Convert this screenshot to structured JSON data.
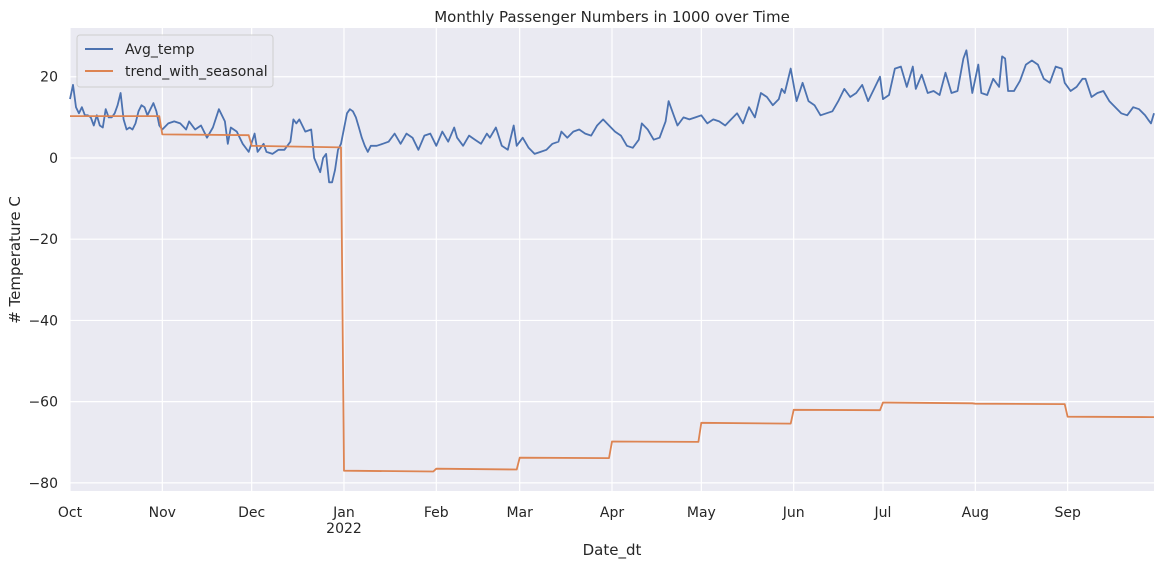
{
  "chart_data": {
    "type": "line",
    "title": "Monthly Passenger Numbers in 1000 over Time",
    "xlabel": "Date_dt",
    "ylabel": "# Temperature C",
    "xlim": [
      "2021-10-01",
      "2022-09-30"
    ],
    "ylim": [
      -82,
      32
    ],
    "grid": true,
    "legend_position": "top-left",
    "y_ticks": [
      -80,
      -60,
      -40,
      -20,
      0,
      20
    ],
    "x_ticks": [
      {
        "date": "2021-10-01",
        "label": "Oct",
        "sublabel": ""
      },
      {
        "date": "2021-11-01",
        "label": "Nov",
        "sublabel": ""
      },
      {
        "date": "2021-12-01",
        "label": "Dec",
        "sublabel": ""
      },
      {
        "date": "2022-01-01",
        "label": "Jan",
        "sublabel": "2022"
      },
      {
        "date": "2022-02-01",
        "label": "Feb",
        "sublabel": ""
      },
      {
        "date": "2022-03-01",
        "label": "Mar",
        "sublabel": ""
      },
      {
        "date": "2022-04-01",
        "label": "Apr",
        "sublabel": ""
      },
      {
        "date": "2022-05-01",
        "label": "May",
        "sublabel": ""
      },
      {
        "date": "2022-06-01",
        "label": "Jun",
        "sublabel": ""
      },
      {
        "date": "2022-07-01",
        "label": "Jul",
        "sublabel": ""
      },
      {
        "date": "2022-08-01",
        "label": "Aug",
        "sublabel": ""
      },
      {
        "date": "2022-09-01",
        "label": "Sep",
        "sublabel": ""
      }
    ],
    "series": [
      {
        "name": "Avg_temp",
        "color": "#4c72b0",
        "points": [
          [
            "2021-10-01",
            14.5
          ],
          [
            "2021-10-02",
            18.0
          ],
          [
            "2021-10-03",
            12.5
          ],
          [
            "2021-10-04",
            11.0
          ],
          [
            "2021-10-05",
            12.5
          ],
          [
            "2021-10-06",
            10.5
          ],
          [
            "2021-10-07",
            10.5
          ],
          [
            "2021-10-08",
            10.0
          ],
          [
            "2021-10-09",
            8.0
          ],
          [
            "2021-10-10",
            10.5
          ],
          [
            "2021-10-11",
            8.0
          ],
          [
            "2021-10-12",
            7.5
          ],
          [
            "2021-10-13",
            12.0
          ],
          [
            "2021-10-14",
            10.0
          ],
          [
            "2021-10-15",
            10.0
          ],
          [
            "2021-10-16",
            11.0
          ],
          [
            "2021-10-17",
            13.0
          ],
          [
            "2021-10-18",
            16.0
          ],
          [
            "2021-10-19",
            9.5
          ],
          [
            "2021-10-20",
            7.0
          ],
          [
            "2021-10-21",
            7.5
          ],
          [
            "2021-10-22",
            7.0
          ],
          [
            "2021-10-23",
            8.5
          ],
          [
            "2021-10-24",
            11.5
          ],
          [
            "2021-10-25",
            13.0
          ],
          [
            "2021-10-26",
            12.5
          ],
          [
            "2021-10-27",
            10.5
          ],
          [
            "2021-10-28",
            12.0
          ],
          [
            "2021-10-29",
            13.5
          ],
          [
            "2021-10-30",
            11.5
          ],
          [
            "2021-10-31",
            8.0
          ],
          [
            "2021-11-01",
            7.0
          ],
          [
            "2021-11-03",
            8.5
          ],
          [
            "2021-11-05",
            9.0
          ],
          [
            "2021-11-07",
            8.5
          ],
          [
            "2021-11-09",
            7.0
          ],
          [
            "2021-11-10",
            9.0
          ],
          [
            "2021-11-12",
            7.0
          ],
          [
            "2021-11-14",
            8.0
          ],
          [
            "2021-11-16",
            5.0
          ],
          [
            "2021-11-18",
            7.5
          ],
          [
            "2021-11-20",
            12.0
          ],
          [
            "2021-11-22",
            9.0
          ],
          [
            "2021-11-23",
            3.5
          ],
          [
            "2021-11-24",
            7.5
          ],
          [
            "2021-11-26",
            6.5
          ],
          [
            "2021-11-28",
            3.5
          ],
          [
            "2021-11-30",
            1.5
          ],
          [
            "2021-12-02",
            6.0
          ],
          [
            "2021-12-03",
            1.5
          ],
          [
            "2021-12-05",
            3.5
          ],
          [
            "2021-12-06",
            1.5
          ],
          [
            "2021-12-08",
            1.0
          ],
          [
            "2021-12-10",
            2.0
          ],
          [
            "2021-12-12",
            2.0
          ],
          [
            "2021-12-14",
            4.0
          ],
          [
            "2021-12-15",
            9.5
          ],
          [
            "2021-12-16",
            8.5
          ],
          [
            "2021-12-17",
            9.5
          ],
          [
            "2021-12-19",
            6.5
          ],
          [
            "2021-12-21",
            7.0
          ],
          [
            "2021-12-22",
            0.0
          ],
          [
            "2021-12-24",
            -3.5
          ],
          [
            "2021-12-25",
            0.0
          ],
          [
            "2021-12-26",
            1.0
          ],
          [
            "2021-12-27",
            -6.0
          ],
          [
            "2021-12-28",
            -6.0
          ],
          [
            "2021-12-29",
            -3.0
          ],
          [
            "2021-12-30",
            2.0
          ],
          [
            "2021-12-31",
            3.5
          ],
          [
            "2022-01-02",
            11.0
          ],
          [
            "2022-01-03",
            12.0
          ],
          [
            "2022-01-04",
            11.5
          ],
          [
            "2022-01-05",
            10.0
          ],
          [
            "2022-01-06",
            7.5
          ],
          [
            "2022-01-07",
            5.0
          ],
          [
            "2022-01-08",
            3.0
          ],
          [
            "2022-01-09",
            1.5
          ],
          [
            "2022-01-10",
            3.0
          ],
          [
            "2022-01-12",
            3.0
          ],
          [
            "2022-01-14",
            3.5
          ],
          [
            "2022-01-16",
            4.0
          ],
          [
            "2022-01-18",
            6.0
          ],
          [
            "2022-01-20",
            3.5
          ],
          [
            "2022-01-22",
            6.0
          ],
          [
            "2022-01-24",
            5.0
          ],
          [
            "2022-01-26",
            2.0
          ],
          [
            "2022-01-28",
            5.5
          ],
          [
            "2022-01-30",
            6.0
          ],
          [
            "2022-02-01",
            3.0
          ],
          [
            "2022-02-03",
            6.5
          ],
          [
            "2022-02-05",
            4.0
          ],
          [
            "2022-02-07",
            7.5
          ],
          [
            "2022-02-08",
            5.0
          ],
          [
            "2022-02-10",
            3.0
          ],
          [
            "2022-02-12",
            5.5
          ],
          [
            "2022-02-14",
            4.5
          ],
          [
            "2022-02-16",
            3.5
          ],
          [
            "2022-02-18",
            6.0
          ],
          [
            "2022-02-19",
            5.0
          ],
          [
            "2022-02-21",
            7.5
          ],
          [
            "2022-02-23",
            3.0
          ],
          [
            "2022-02-25",
            2.0
          ],
          [
            "2022-02-27",
            8.0
          ],
          [
            "2022-02-28",
            3.0
          ],
          [
            "2022-03-02",
            5.0
          ],
          [
            "2022-03-04",
            2.5
          ],
          [
            "2022-03-06",
            1.0
          ],
          [
            "2022-03-08",
            1.5
          ],
          [
            "2022-03-10",
            2.0
          ],
          [
            "2022-03-12",
            3.5
          ],
          [
            "2022-03-14",
            4.0
          ],
          [
            "2022-03-15",
            6.5
          ],
          [
            "2022-03-17",
            5.0
          ],
          [
            "2022-03-19",
            6.5
          ],
          [
            "2022-03-21",
            7.0
          ],
          [
            "2022-03-23",
            6.0
          ],
          [
            "2022-03-25",
            5.5
          ],
          [
            "2022-03-27",
            8.0
          ],
          [
            "2022-03-29",
            9.5
          ],
          [
            "2022-03-31",
            8.0
          ],
          [
            "2022-04-02",
            6.5
          ],
          [
            "2022-04-04",
            5.5
          ],
          [
            "2022-04-06",
            3.0
          ],
          [
            "2022-04-08",
            2.5
          ],
          [
            "2022-04-10",
            4.5
          ],
          [
            "2022-04-11",
            8.5
          ],
          [
            "2022-04-13",
            7.0
          ],
          [
            "2022-04-15",
            4.5
          ],
          [
            "2022-04-17",
            5.0
          ],
          [
            "2022-04-19",
            9.0
          ],
          [
            "2022-04-20",
            14.0
          ],
          [
            "2022-04-22",
            10.0
          ],
          [
            "2022-04-23",
            8.0
          ],
          [
            "2022-04-25",
            10.0
          ],
          [
            "2022-04-27",
            9.5
          ],
          [
            "2022-04-29",
            10.0
          ],
          [
            "2022-05-01",
            10.5
          ],
          [
            "2022-05-03",
            8.5
          ],
          [
            "2022-05-05",
            9.5
          ],
          [
            "2022-05-07",
            9.0
          ],
          [
            "2022-05-09",
            8.0
          ],
          [
            "2022-05-11",
            9.5
          ],
          [
            "2022-05-13",
            11.0
          ],
          [
            "2022-05-15",
            8.5
          ],
          [
            "2022-05-17",
            12.5
          ],
          [
            "2022-05-19",
            10.0
          ],
          [
            "2022-05-21",
            16.0
          ],
          [
            "2022-05-23",
            15.0
          ],
          [
            "2022-05-25",
            13.0
          ],
          [
            "2022-05-27",
            14.5
          ],
          [
            "2022-05-28",
            17.0
          ],
          [
            "2022-05-29",
            16.0
          ],
          [
            "2022-05-31",
            22.0
          ],
          [
            "2022-06-02",
            14.0
          ],
          [
            "2022-06-04",
            18.5
          ],
          [
            "2022-06-06",
            14.0
          ],
          [
            "2022-06-08",
            13.0
          ],
          [
            "2022-06-10",
            10.5
          ],
          [
            "2022-06-12",
            11.0
          ],
          [
            "2022-06-14",
            11.5
          ],
          [
            "2022-06-16",
            14.0
          ],
          [
            "2022-06-18",
            17.0
          ],
          [
            "2022-06-20",
            15.0
          ],
          [
            "2022-06-22",
            16.0
          ],
          [
            "2022-06-24",
            18.0
          ],
          [
            "2022-06-26",
            14.0
          ],
          [
            "2022-06-28",
            17.0
          ],
          [
            "2022-06-30",
            20.0
          ],
          [
            "2022-07-01",
            14.5
          ],
          [
            "2022-07-03",
            15.5
          ],
          [
            "2022-07-05",
            22.0
          ],
          [
            "2022-07-07",
            22.5
          ],
          [
            "2022-07-09",
            17.5
          ],
          [
            "2022-07-11",
            22.5
          ],
          [
            "2022-07-12",
            17.0
          ],
          [
            "2022-07-14",
            20.5
          ],
          [
            "2022-07-16",
            16.0
          ],
          [
            "2022-07-18",
            16.5
          ],
          [
            "2022-07-20",
            15.5
          ],
          [
            "2022-07-22",
            21.0
          ],
          [
            "2022-07-24",
            16.0
          ],
          [
            "2022-07-26",
            16.5
          ],
          [
            "2022-07-28",
            24.5
          ],
          [
            "2022-07-29",
            26.5
          ],
          [
            "2022-07-31",
            16.0
          ],
          [
            "2022-08-02",
            23.0
          ],
          [
            "2022-08-03",
            16.0
          ],
          [
            "2022-08-05",
            15.5
          ],
          [
            "2022-08-07",
            19.5
          ],
          [
            "2022-08-09",
            17.5
          ],
          [
            "2022-08-10",
            25.0
          ],
          [
            "2022-08-11",
            24.5
          ],
          [
            "2022-08-12",
            16.5
          ],
          [
            "2022-08-14",
            16.5
          ],
          [
            "2022-08-16",
            19.0
          ],
          [
            "2022-08-18",
            23.0
          ],
          [
            "2022-08-20",
            24.0
          ],
          [
            "2022-08-22",
            23.0
          ],
          [
            "2022-08-24",
            19.5
          ],
          [
            "2022-08-26",
            18.5
          ],
          [
            "2022-08-28",
            22.5
          ],
          [
            "2022-08-30",
            22.0
          ],
          [
            "2022-08-31",
            18.5
          ],
          [
            "2022-09-02",
            16.5
          ],
          [
            "2022-09-04",
            17.5
          ],
          [
            "2022-09-06",
            19.5
          ],
          [
            "2022-09-07",
            19.5
          ],
          [
            "2022-09-09",
            15.0
          ],
          [
            "2022-09-11",
            16.0
          ],
          [
            "2022-09-13",
            16.5
          ],
          [
            "2022-09-15",
            14.0
          ],
          [
            "2022-09-17",
            12.5
          ],
          [
            "2022-09-19",
            11.0
          ],
          [
            "2022-09-21",
            10.5
          ],
          [
            "2022-09-23",
            12.5
          ],
          [
            "2022-09-25",
            12.0
          ],
          [
            "2022-09-27",
            10.5
          ],
          [
            "2022-09-28",
            9.5
          ],
          [
            "2022-09-29",
            8.5
          ],
          [
            "2022-09-30",
            11.0
          ]
        ]
      },
      {
        "name": "trend_with_seasonal",
        "color": "#dd8452",
        "points": [
          [
            "2021-10-01",
            10.3
          ],
          [
            "2021-10-31",
            10.3
          ],
          [
            "2021-11-01",
            5.8
          ],
          [
            "2021-11-30",
            5.6
          ],
          [
            "2021-12-01",
            3.0
          ],
          [
            "2021-12-31",
            2.6
          ],
          [
            "2022-01-01",
            -77.0
          ],
          [
            "2022-01-31",
            -77.2
          ],
          [
            "2022-02-01",
            -76.5
          ],
          [
            "2022-02-28",
            -76.7
          ],
          [
            "2022-03-01",
            -73.8
          ],
          [
            "2022-03-31",
            -73.9
          ],
          [
            "2022-04-01",
            -69.8
          ],
          [
            "2022-04-30",
            -69.9
          ],
          [
            "2022-05-01",
            -65.2
          ],
          [
            "2022-05-31",
            -65.4
          ],
          [
            "2022-06-01",
            -62.0
          ],
          [
            "2022-06-30",
            -62.1
          ],
          [
            "2022-07-01",
            -60.2
          ],
          [
            "2022-07-31",
            -60.4
          ],
          [
            "2022-08-01",
            -60.5
          ],
          [
            "2022-08-31",
            -60.6
          ],
          [
            "2022-09-01",
            -63.7
          ],
          [
            "2022-09-30",
            -63.8
          ]
        ]
      }
    ]
  }
}
